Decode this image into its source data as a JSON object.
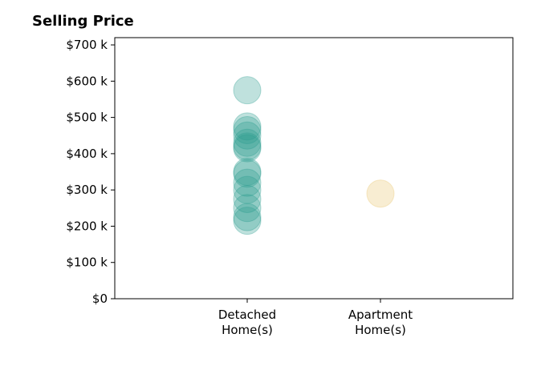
{
  "chart_data": {
    "type": "scatter",
    "title": "Selling Price",
    "xlabel": "",
    "ylabel": "",
    "categories": [
      "Detached\nHome(s)",
      "Apartment\nHome(s)"
    ],
    "y_ticks": [
      "$0",
      "$100 k",
      "$200 k",
      "$300 k",
      "$400 k",
      "$500 k",
      "$600 k",
      "$700 k"
    ],
    "ylim": [
      0,
      720000
    ],
    "grid": false,
    "series": [
      {
        "category": "Detached\nHome(s)",
        "color": "#2a9d8f",
        "values": [
          575000,
          475000,
          465000,
          450000,
          430000,
          420000,
          415000,
          350000,
          345000,
          320000,
          300000,
          275000,
          250000,
          225000,
          215000
        ]
      },
      {
        "category": "Apartment\nHome(s)",
        "color": "#e9c46a",
        "values": [
          290000
        ]
      }
    ]
  }
}
